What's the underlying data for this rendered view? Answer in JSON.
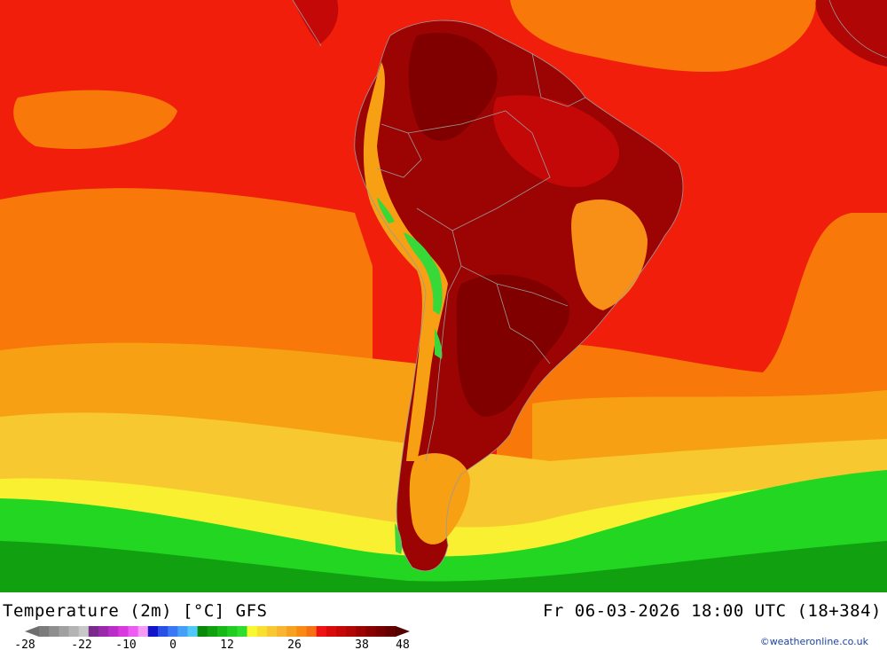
{
  "header": {
    "title_left": "Temperature (2m) [°C] GFS",
    "title_right": "Fr 06-03-2026 18:00 UTC (18+384)"
  },
  "legend": {
    "tick_labels": [
      "-28",
      "-22",
      "-10",
      "0",
      "12",
      "26",
      "38",
      "48"
    ],
    "colors": [
      "#7c7c7c",
      "#8e8e8e",
      "#a0a0a0",
      "#b4b4b4",
      "#c8c8c8",
      "#7a2a8a",
      "#9a2aaa",
      "#b92ec8",
      "#d83ae0",
      "#ec5cf0",
      "#f59af5",
      "#1414c8",
      "#2a50e6",
      "#3a78f5",
      "#46a0f8",
      "#52c8f8",
      "#0a8a0a",
      "#10a010",
      "#18b818",
      "#22cc22",
      "#2ede2e",
      "#f8f830",
      "#f8e030",
      "#f8c832",
      "#f8b432",
      "#f8a022",
      "#f88a14",
      "#f87014",
      "#ee1414",
      "#d80a0a",
      "#c40808",
      "#b00606",
      "#9c0404",
      "#880202",
      "#760000",
      "#640000"
    ]
  },
  "map": {
    "colors": {
      "ocean_tropical": "#f01e0a",
      "ocean_warm": "#f8780a",
      "ocean_mid": "#f8a014",
      "ocean_cool": "#f8d028",
      "yellow_band": "#f8f830",
      "green_band": "#22d622",
      "green_dark": "#10a010",
      "land_hot": "#9c0404",
      "land_hotter": "#800000",
      "land_warm": "#d00808",
      "land_orange": "#f89018",
      "andes_green": "#38d838",
      "border_line": "#9a9a9a"
    }
  },
  "credit": "©weatheronline.co.uk"
}
